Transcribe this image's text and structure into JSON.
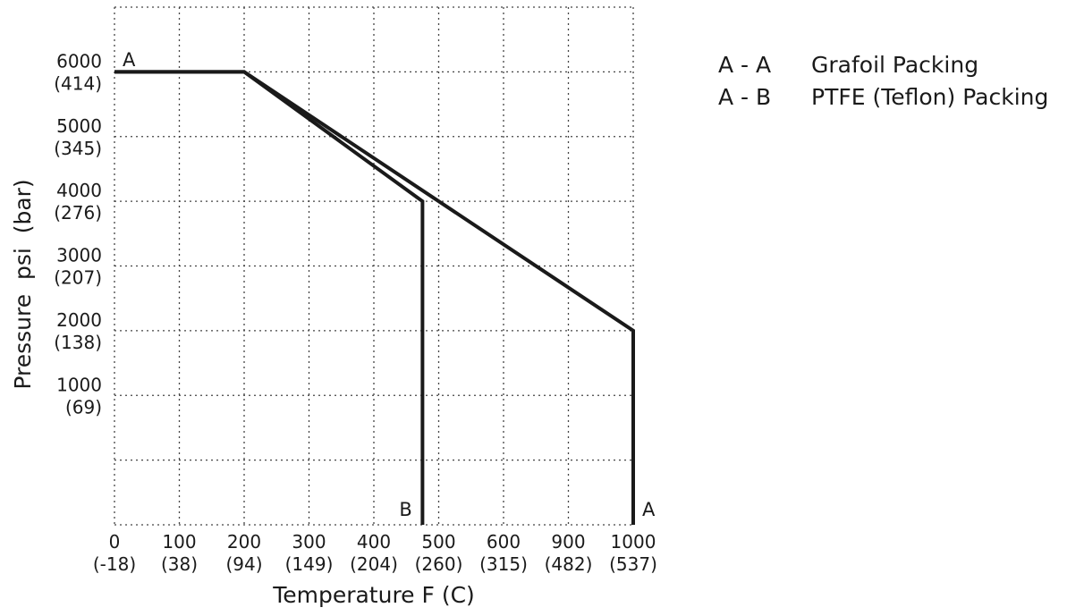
{
  "chart_data": {
    "type": "line",
    "xlabel": "Temperature F (C)",
    "ylabel": "Pressure  psi  (bar)",
    "categories": [
      "0",
      "100",
      "200",
      "300",
      "400",
      "500",
      "600",
      "900",
      "1000"
    ],
    "x_tick_labels": [
      {
        "f": "0",
        "c": "(-18)"
      },
      {
        "f": "100",
        "c": "(38)"
      },
      {
        "f": "200",
        "c": "(94)"
      },
      {
        "f": "300",
        "c": "(149)"
      },
      {
        "f": "400",
        "c": "(204)"
      },
      {
        "f": "500",
        "c": "(260)"
      },
      {
        "f": "600",
        "c": "(315)"
      },
      {
        "f": "900",
        "c": "(482)"
      },
      {
        "f": "1000",
        "c": "(537)"
      }
    ],
    "y_tick_labels": [
      {
        "psi": "6000",
        "bar": "(414)",
        "value": 6000
      },
      {
        "psi": "5000",
        "bar": "(345)",
        "value": 5000
      },
      {
        "psi": "4000",
        "bar": "(276)",
        "value": 4000
      },
      {
        "psi": "3000",
        "bar": "(207)",
        "value": 3000
      },
      {
        "psi": "2000",
        "bar": "(138)",
        "value": 2000
      },
      {
        "psi": "1000",
        "bar": "(69)",
        "value": 1000
      }
    ],
    "ylim": [
      -1000,
      7000
    ],
    "grid": true,
    "legend_position": "right",
    "series": [
      {
        "name": "A - A",
        "end_label": "A",
        "points": [
          {
            "category_index": 0,
            "y": 6000
          },
          {
            "category_index": 2,
            "y": 6000
          },
          {
            "category_index": 8,
            "y": 2000
          },
          {
            "category_index": 8,
            "y": -1000
          }
        ]
      },
      {
        "name": "A - B",
        "end_label": "B",
        "points": [
          {
            "category_index": 0,
            "y": 6000
          },
          {
            "category_index": 2,
            "y": 6000
          },
          {
            "category_index": 4.75,
            "y": 4000
          },
          {
            "category_index": 4.75,
            "y": -1000
          }
        ]
      }
    ],
    "start_label": "A"
  },
  "legend": [
    {
      "key": "A - A",
      "label": "Grafoil Packing"
    },
    {
      "key": "A - B",
      "label": "PTFE (Teflon) Packing"
    }
  ]
}
